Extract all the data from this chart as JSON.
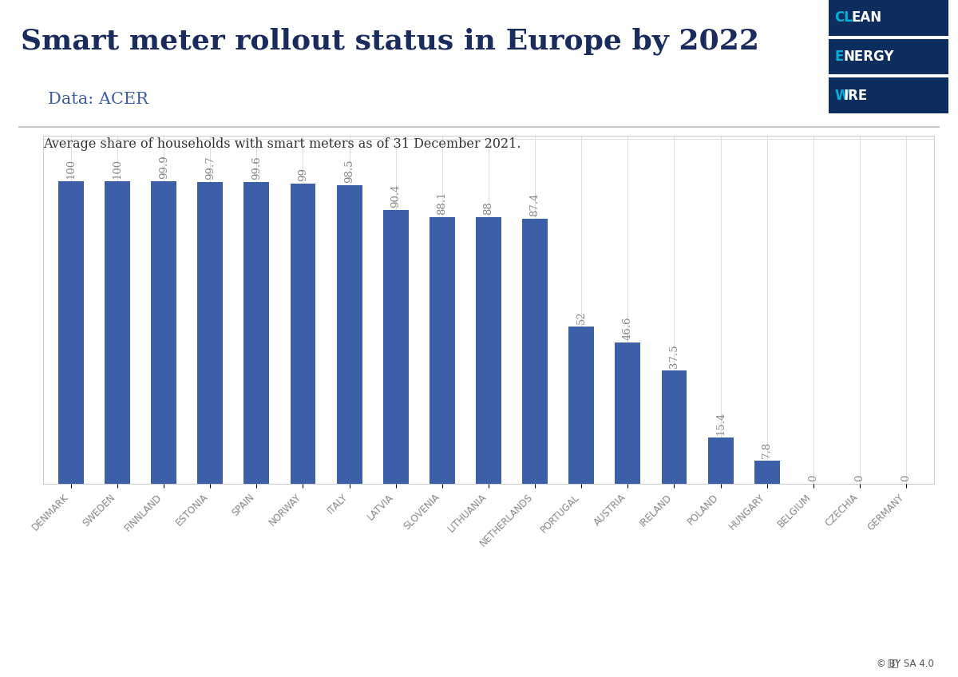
{
  "title": "Smart meter rollout status in Europe by 2022",
  "subtitle": "Data: ACER",
  "annotation": "Average share of households with smart meters as of 31 December 2021.",
  "categories": [
    "DENMARK",
    "SWEDEN",
    "FINNLAND",
    "ESTONIA",
    "SPAIN",
    "NORWAY",
    "ITALY",
    "LATVIA",
    "SLOVENIA",
    "LITHUANIA",
    "NETHERLANDS",
    "PORTUGAL",
    "AUSTRIA",
    "IRELAND",
    "POLAND",
    "HUNGARY",
    "BELGIUM",
    "CZECHIA",
    "GERMANY"
  ],
  "values": [
    100,
    100,
    99.9,
    99.7,
    99.6,
    99,
    98.5,
    90.4,
    88.1,
    88,
    87.4,
    52,
    46.6,
    37.5,
    15.4,
    7.8,
    0,
    0,
    0
  ],
  "bar_color": "#3d5fa8",
  "title_color": "#1a2b5e",
  "subtitle_color": "#3d5fa8",
  "annotation_color": "#333333",
  "background_color": "#ffffff",
  "header_bg_color": "#f5f5f5",
  "ylim": [
    0,
    115
  ],
  "title_fontsize": 26,
  "subtitle_fontsize": 15,
  "annotation_fontsize": 11.5,
  "bar_label_fontsize": 9.5,
  "xtick_fontsize": 8.5,
  "logo_bg_color": "#0d2d5e",
  "logo_highlight_color": "#00b0d8",
  "logo_words": [
    [
      "CL",
      "EAN"
    ],
    [
      "E",
      "NERGY"
    ],
    [
      "W",
      "IRE"
    ]
  ],
  "grid_color": "#dedede",
  "spine_color": "#cccccc",
  "label_color": "#888888"
}
